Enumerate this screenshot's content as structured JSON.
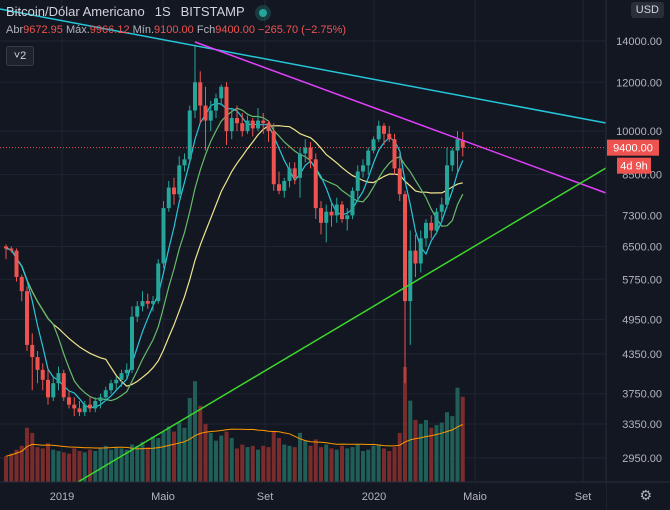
{
  "header": {
    "symbol_name": "Bitcoin/Dólar Americano",
    "interval": "1S",
    "exchange": "BITSTAMP",
    "ohlc": {
      "open_label": "Abr",
      "open": "9672.95",
      "high_label": "Máx.",
      "high": "9966.12",
      "low_label": "Mín.",
      "low": "9100.00",
      "close_label": "Fch",
      "close": "9400.00",
      "change": "−265.70 (−2.75%)"
    },
    "indicator_count": "2",
    "currency": "USD"
  },
  "colors": {
    "up": "#26a69a",
    "down": "#ef5350",
    "ma_fast": "#26c6da",
    "ma_mid": "#66bb6a",
    "ma_slow": "#f0e68c",
    "vol_ma": "#ff9800",
    "trend_cyan": "#26c6da",
    "trend_magenta": "#e040fb",
    "trend_green": "#3dd62c"
  },
  "chart_data": {
    "type": "candlestick",
    "price_scale": "log",
    "y_ticks": [
      "14000.00",
      "12000.00",
      "10000.00",
      "8500.00",
      "7300.00",
      "6500.00",
      "5750.00",
      "4950.00",
      "4350.00",
      "3750.00",
      "3350.00",
      "2950.00"
    ],
    "x_ticks": [
      "2019",
      "Maio",
      "Set",
      "2020",
      "Maio",
      "Set"
    ],
    "last_price_label": "9400.00",
    "countdown_label": "4d 9h",
    "ohlc_weekly": [
      [
        6500,
        6550,
        6200,
        6450
      ],
      [
        6450,
        6500,
        6350,
        6400
      ],
      [
        6400,
        6450,
        5700,
        5800
      ],
      [
        5800,
        5850,
        5300,
        5500
      ],
      [
        5500,
        5600,
        4400,
        4500
      ],
      [
        4500,
        4700,
        3800,
        4300
      ],
      [
        4300,
        4400,
        3900,
        4100
      ],
      [
        4100,
        4200,
        3800,
        3950
      ],
      [
        3950,
        4100,
        3600,
        3700
      ],
      [
        3700,
        4000,
        3650,
        3900
      ],
      [
        3900,
        4150,
        3800,
        4050
      ],
      [
        4050,
        4100,
        3650,
        3700
      ],
      [
        3700,
        3800,
        3550,
        3600
      ],
      [
        3600,
        3700,
        3450,
        3550
      ],
      [
        3550,
        3650,
        3450,
        3500
      ],
      [
        3500,
        3650,
        3450,
        3600
      ],
      [
        3600,
        3700,
        3500,
        3550
      ],
      [
        3550,
        3700,
        3500,
        3650
      ],
      [
        3650,
        3750,
        3550,
        3700
      ],
      [
        3700,
        3850,
        3650,
        3800
      ],
      [
        3800,
        3950,
        3750,
        3900
      ],
      [
        3900,
        4000,
        3800,
        3950
      ],
      [
        3950,
        4100,
        3850,
        4050
      ],
      [
        4050,
        4200,
        3950,
        4100
      ],
      [
        4100,
        5200,
        4050,
        5000
      ],
      [
        5000,
        5300,
        4900,
        5200
      ],
      [
        5200,
        5500,
        5100,
        5300
      ],
      [
        5300,
        5450,
        5150,
        5250
      ],
      [
        5250,
        5400,
        5100,
        5300
      ],
      [
        5300,
        6200,
        5250,
        6100
      ],
      [
        6100,
        7700,
        6000,
        7500
      ],
      [
        7500,
        8300,
        7400,
        8100
      ],
      [
        8100,
        8400,
        7600,
        7900
      ],
      [
        7900,
        9100,
        7800,
        8800
      ],
      [
        8800,
        9200,
        8600,
        9000
      ],
      [
        9000,
        11000,
        8900,
        10800
      ],
      [
        10800,
        13800,
        10500,
        12000
      ],
      [
        12000,
        12500,
        10300,
        11000
      ],
      [
        11000,
        11800,
        9300,
        10400
      ],
      [
        10400,
        11200,
        10000,
        10800
      ],
      [
        10800,
        11500,
        10500,
        11300
      ],
      [
        11300,
        11900,
        11000,
        11800
      ],
      [
        11800,
        12000,
        9500,
        10000
      ],
      [
        10000,
        10900,
        9700,
        10500
      ],
      [
        10500,
        11000,
        10000,
        10300
      ],
      [
        10300,
        10700,
        9800,
        10000
      ],
      [
        10000,
        10600,
        9900,
        10400
      ],
      [
        10400,
        10500,
        9800,
        10100
      ],
      [
        10100,
        10900,
        10000,
        10400
      ],
      [
        10400,
        10700,
        9900,
        10300
      ],
      [
        10300,
        10400,
        9600,
        10000
      ],
      [
        10000,
        10300,
        8000,
        8200
      ],
      [
        8200,
        8600,
        7900,
        8000
      ],
      [
        8000,
        8400,
        7800,
        8300
      ],
      [
        8300,
        8900,
        8100,
        8700
      ],
      [
        8700,
        8900,
        8200,
        8400
      ],
      [
        8400,
        9400,
        7800,
        9200
      ],
      [
        9200,
        9700,
        8900,
        9400
      ],
      [
        9400,
        9600,
        8700,
        9000
      ],
      [
        9000,
        9200,
        7200,
        7500
      ],
      [
        7500,
        7700,
        6800,
        7100
      ],
      [
        7100,
        7600,
        6600,
        7400
      ],
      [
        7400,
        7700,
        7000,
        7300
      ],
      [
        7300,
        7800,
        7100,
        7600
      ],
      [
        7600,
        7700,
        7100,
        7200
      ],
      [
        7200,
        7500,
        6900,
        7300
      ],
      [
        7300,
        8100,
        7200,
        8000
      ],
      [
        8000,
        8800,
        7700,
        8600
      ],
      [
        8600,
        9000,
        8400,
        8800
      ],
      [
        8800,
        9400,
        8500,
        9300
      ],
      [
        9300,
        9800,
        9200,
        9700
      ],
      [
        9700,
        10400,
        9600,
        10200
      ],
      [
        10200,
        10300,
        9500,
        9900
      ],
      [
        9900,
        10200,
        9600,
        9700
      ],
      [
        9700,
        9900,
        8500,
        8700
      ],
      [
        8700,
        9200,
        7700,
        7900
      ],
      [
        7900,
        8000,
        3900,
        5300
      ],
      [
        5300,
        6900,
        4500,
        6400
      ],
      [
        6400,
        6800,
        5800,
        6100
      ],
      [
        6100,
        6900,
        5900,
        6700
      ],
      [
        6700,
        7200,
        6500,
        7100
      ],
      [
        7100,
        7300,
        6700,
        6900
      ],
      [
        6900,
        7500,
        6800,
        7400
      ],
      [
        7400,
        7800,
        7100,
        7600
      ],
      [
        7600,
        9400,
        7500,
        8800
      ],
      [
        8800,
        9400,
        8600,
        9300
      ],
      [
        9300,
        10000,
        8600,
        9700
      ],
      [
        9672.95,
        9966.12,
        9100,
        9400
      ]
    ],
    "volume_weekly": [
      2,
      2.2,
      2.5,
      2.8,
      4.2,
      3.8,
      2.7,
      2.6,
      3,
      2.5,
      2.4,
      2.3,
      2.2,
      2.6,
      2.4,
      2.3,
      2.5,
      2.4,
      2.6,
      2.8,
      2.5,
      2.7,
      2.6,
      2.5,
      2.9,
      2.8,
      3.1,
      2.7,
      3.5,
      3.4,
      3.9,
      4.3,
      3.9,
      4.6,
      4.2,
      6.5,
      7.8,
      5.9,
      4.5,
      3.8,
      3.2,
      3.6,
      3.9,
      3.4,
      2.6,
      2.9,
      2.7,
      2.8,
      2.5,
      2.8,
      2.7,
      3.9,
      3.4,
      2.9,
      2.8,
      2.7,
      3.8,
      3.2,
      2.8,
      3.3,
      2.7,
      2.9,
      2.6,
      2.5,
      2.8,
      2.6,
      2.7,
      2.9,
      2.4,
      2.5,
      2.8,
      2.9,
      2.6,
      2.4,
      2.7,
      3.8,
      8.9,
      6.3,
      4.8,
      4.5,
      4.8,
      4.2,
      4.4,
      4.6,
      5.4,
      5.1,
      7.3,
      6.6
    ]
  }
}
